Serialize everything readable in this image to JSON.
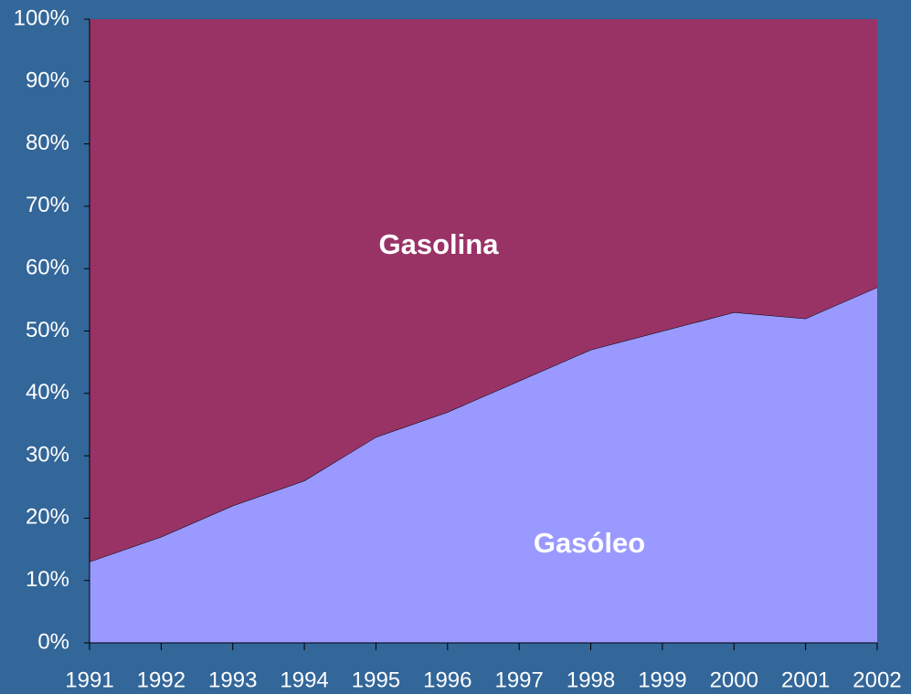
{
  "chart_data": {
    "type": "stacked_area",
    "x": [
      1991,
      1992,
      1993,
      1994,
      1995,
      1996,
      1997,
      1998,
      1999,
      2000,
      2001,
      2002
    ],
    "xlim": [
      1991,
      2002
    ],
    "xticks": [
      1991,
      1992,
      1993,
      1994,
      1995,
      1996,
      1997,
      1998,
      1999,
      2000,
      2001,
      2002
    ],
    "ylim": [
      0,
      100
    ],
    "yticks": [
      {
        "value": 0,
        "label": "0%"
      },
      {
        "value": 10,
        "label": "10%"
      },
      {
        "value": 20,
        "label": "20%"
      },
      {
        "value": 30,
        "label": "30%"
      },
      {
        "value": 40,
        "label": "40%"
      },
      {
        "value": 50,
        "label": "50%"
      },
      {
        "value": 60,
        "label": "60%"
      },
      {
        "value": 70,
        "label": "70%"
      },
      {
        "value": 80,
        "label": "80%"
      },
      {
        "value": 90,
        "label": "90%"
      },
      {
        "value": 100,
        "label": "100%"
      }
    ],
    "series": [
      {
        "name": "Gasóleo",
        "color": "#9999ff",
        "values": [
          13,
          17,
          22,
          26,
          33,
          37,
          42,
          47,
          50,
          53,
          52,
          57
        ]
      },
      {
        "name": "Gasolina",
        "color": "#993366",
        "values": [
          87,
          83,
          78,
          74,
          67,
          63,
          58,
          53,
          50,
          47,
          48,
          43
        ]
      }
    ]
  }
}
